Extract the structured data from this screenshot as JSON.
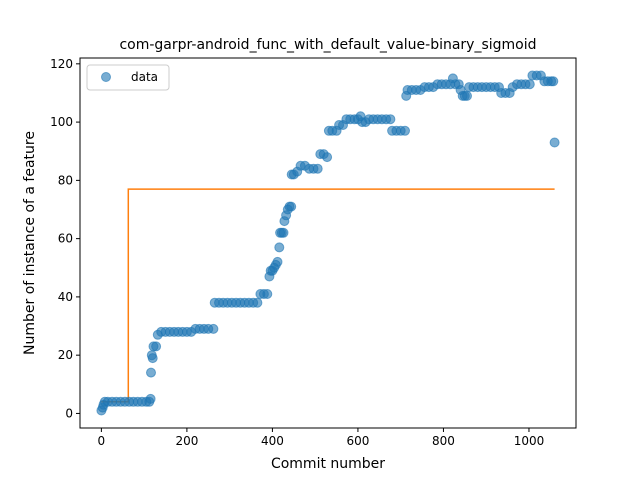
{
  "chart_data": {
    "type": "scatter",
    "title": "com-garpr-android_func_with_default_value-binary_sigmoid",
    "xlabel": "Commit number",
    "ylabel": "Number of instance of a feature",
    "xlim": [
      -50,
      1110
    ],
    "ylim": [
      -5,
      122
    ],
    "xticks": [
      0,
      200,
      400,
      600,
      800,
      1000
    ],
    "yticks": [
      0,
      20,
      40,
      60,
      80,
      100,
      120
    ],
    "legend": {
      "placement": "top-left",
      "entries": [
        "data"
      ]
    },
    "colors": {
      "data": "#1f77b4",
      "fit": "#ff7f0e"
    },
    "series": [
      {
        "name": "data",
        "kind": "scatter",
        "points": [
          [
            0,
            1
          ],
          [
            3,
            2
          ],
          [
            5,
            3
          ],
          [
            8,
            4
          ],
          [
            15,
            4
          ],
          [
            25,
            4
          ],
          [
            35,
            4
          ],
          [
            45,
            4
          ],
          [
            55,
            4
          ],
          [
            65,
            4
          ],
          [
            75,
            4
          ],
          [
            85,
            4
          ],
          [
            95,
            4
          ],
          [
            105,
            4
          ],
          [
            112,
            4
          ],
          [
            115,
            5
          ],
          [
            116,
            14
          ],
          [
            118,
            20
          ],
          [
            120,
            19
          ],
          [
            122,
            23
          ],
          [
            128,
            23
          ],
          [
            132,
            27
          ],
          [
            140,
            28
          ],
          [
            150,
            28
          ],
          [
            160,
            28
          ],
          [
            170,
            28
          ],
          [
            180,
            28
          ],
          [
            190,
            28
          ],
          [
            200,
            28
          ],
          [
            210,
            28
          ],
          [
            220,
            29
          ],
          [
            230,
            29
          ],
          [
            240,
            29
          ],
          [
            250,
            29
          ],
          [
            262,
            29
          ],
          [
            265,
            38
          ],
          [
            275,
            38
          ],
          [
            285,
            38
          ],
          [
            295,
            38
          ],
          [
            305,
            38
          ],
          [
            315,
            38
          ],
          [
            325,
            38
          ],
          [
            335,
            38
          ],
          [
            345,
            38
          ],
          [
            355,
            38
          ],
          [
            365,
            38
          ],
          [
            372,
            41
          ],
          [
            380,
            41
          ],
          [
            388,
            41
          ],
          [
            393,
            47
          ],
          [
            396,
            49
          ],
          [
            400,
            49
          ],
          [
            404,
            50
          ],
          [
            408,
            51
          ],
          [
            412,
            52
          ],
          [
            416,
            57
          ],
          [
            418,
            62
          ],
          [
            422,
            62
          ],
          [
            426,
            62
          ],
          [
            428,
            66
          ],
          [
            432,
            68
          ],
          [
            436,
            70
          ],
          [
            440,
            71
          ],
          [
            444,
            71
          ],
          [
            445,
            82
          ],
          [
            450,
            82
          ],
          [
            458,
            83
          ],
          [
            466,
            85
          ],
          [
            476,
            85
          ],
          [
            486,
            84
          ],
          [
            496,
            84
          ],
          [
            506,
            84
          ],
          [
            512,
            89
          ],
          [
            520,
            89
          ],
          [
            528,
            88
          ],
          [
            532,
            97
          ],
          [
            540,
            97
          ],
          [
            550,
            97
          ],
          [
            556,
            99
          ],
          [
            565,
            99
          ],
          [
            573,
            101
          ],
          [
            582,
            101
          ],
          [
            592,
            101
          ],
          [
            600,
            101
          ],
          [
            606,
            102
          ],
          [
            610,
            100
          ],
          [
            618,
            100
          ],
          [
            626,
            101
          ],
          [
            636,
            101
          ],
          [
            646,
            101
          ],
          [
            656,
            101
          ],
          [
            666,
            101
          ],
          [
            676,
            101
          ],
          [
            680,
            97
          ],
          [
            690,
            97
          ],
          [
            700,
            97
          ],
          [
            710,
            97
          ],
          [
            713,
            109
          ],
          [
            716,
            111
          ],
          [
            726,
            111
          ],
          [
            736,
            111
          ],
          [
            746,
            111
          ],
          [
            756,
            112
          ],
          [
            766,
            112
          ],
          [
            776,
            112
          ],
          [
            786,
            113
          ],
          [
            796,
            113
          ],
          [
            806,
            113
          ],
          [
            816,
            113
          ],
          [
            822,
            115
          ],
          [
            828,
            113
          ],
          [
            836,
            113
          ],
          [
            840,
            111
          ],
          [
            845,
            109
          ],
          [
            850,
            109
          ],
          [
            855,
            109
          ],
          [
            860,
            112
          ],
          [
            870,
            112
          ],
          [
            880,
            112
          ],
          [
            890,
            112
          ],
          [
            900,
            112
          ],
          [
            910,
            112
          ],
          [
            920,
            112
          ],
          [
            930,
            112
          ],
          [
            935,
            110
          ],
          [
            945,
            110
          ],
          [
            955,
            110
          ],
          [
            962,
            112
          ],
          [
            972,
            113
          ],
          [
            982,
            113
          ],
          [
            992,
            113
          ],
          [
            1002,
            113
          ],
          [
            1008,
            116
          ],
          [
            1018,
            116
          ],
          [
            1028,
            116
          ],
          [
            1036,
            114
          ],
          [
            1044,
            114
          ],
          [
            1052,
            114
          ],
          [
            1057,
            114
          ],
          [
            1060,
            93
          ]
        ]
      },
      {
        "kind": "step-line",
        "points": [
          [
            0,
            4
          ],
          [
            63,
            4
          ],
          [
            63,
            77
          ],
          [
            1060,
            77
          ]
        ]
      }
    ]
  }
}
